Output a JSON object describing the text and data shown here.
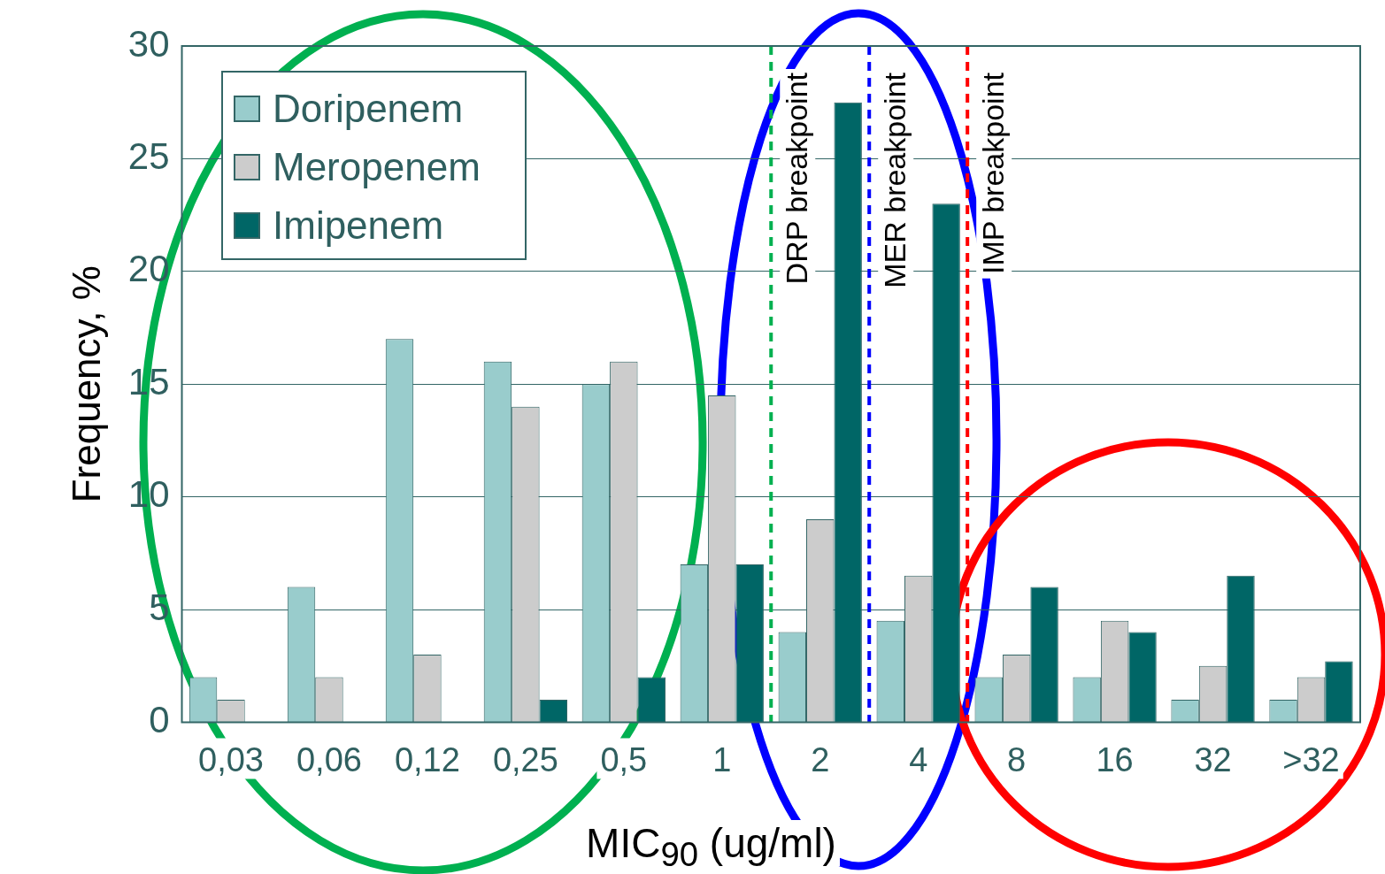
{
  "chart_data": {
    "type": "bar",
    "xlabel": "MIC$_{90}$ (ug/ml)",
    "ylabel": "Frequency, %",
    "categories": [
      "0,03",
      "0,06",
      "0,12",
      "0,25",
      "0,5",
      "1",
      "2",
      "4",
      "8",
      "16",
      "32",
      ">32"
    ],
    "series": [
      {
        "name": "Doripenem",
        "color": "#99cccc",
        "values": [
          2,
          6,
          17,
          16,
          15,
          7,
          4,
          4.5,
          2,
          2,
          1,
          1
        ]
      },
      {
        "name": "Meropenem",
        "color": "#cccccc",
        "values": [
          1,
          2,
          3,
          14,
          16,
          14.5,
          9,
          6.5,
          3,
          4.5,
          2.5,
          2
        ]
      },
      {
        "name": "Imipenem",
        "color": "#006666",
        "values": [
          0,
          0,
          0,
          1,
          2,
          7,
          27.5,
          23,
          6,
          4,
          6.5,
          2.7
        ]
      }
    ],
    "ylim": [
      0,
      30
    ],
    "yticks": [
      0,
      5,
      10,
      15,
      20,
      25,
      30
    ],
    "grid": "y",
    "legend": "top left",
    "ref_lines": [
      {
        "axis": "x",
        "value": "1",
        "label": "DRP breakpoint",
        "color": "#00b050",
        "line_style": "dashed"
      },
      {
        "axis": "x",
        "value": "2",
        "label": "MER breakpoint",
        "color": "#0000ff",
        "line_style": "dashed"
      },
      {
        "axis": "x",
        "value": "4",
        "label": "IMP breakpoint",
        "color": "#ff0000",
        "line_style": "dashed"
      }
    ]
  }
}
